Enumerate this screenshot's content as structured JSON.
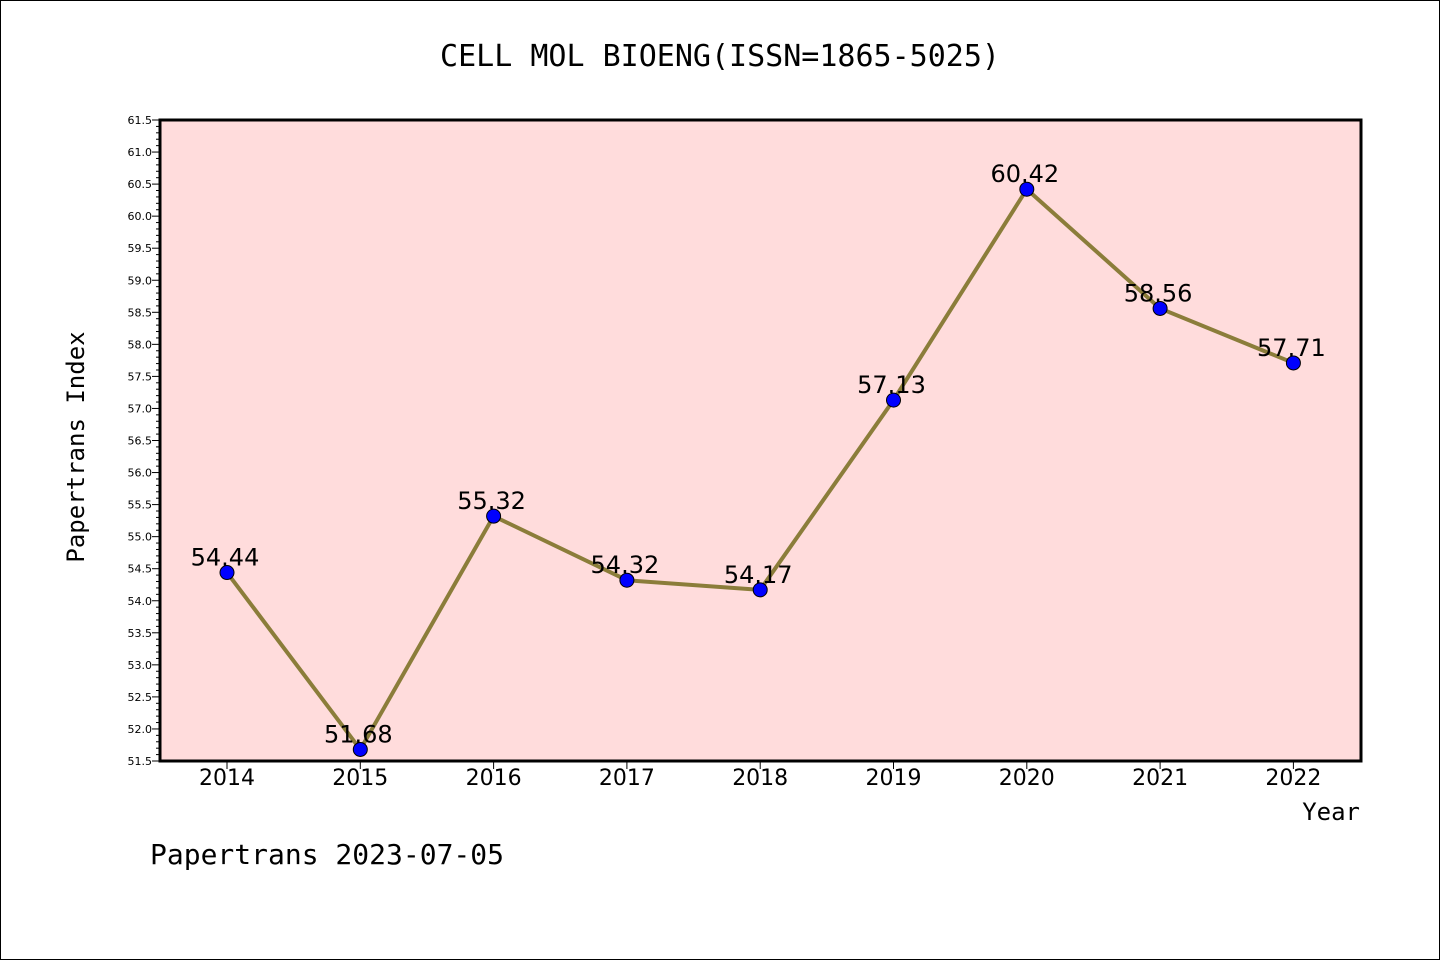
{
  "chart_data": {
    "type": "line",
    "title": "CELL MOL BIOENG(ISSN=1865-5025)",
    "xlabel": "Year",
    "ylabel": "Papertrans Index",
    "categories": [
      "2014",
      "2015",
      "2016",
      "2017",
      "2018",
      "2019",
      "2020",
      "2021",
      "2022"
    ],
    "values": [
      54.44,
      51.68,
      55.32,
      54.32,
      54.17,
      57.13,
      60.42,
      58.56,
      57.71
    ],
    "data_labels": [
      "54.44",
      "51.68",
      "55.32",
      "54.32",
      "54.17",
      "57.13",
      "60.42",
      "58.56",
      "57.71"
    ],
    "ylim": [
      51.5,
      61.5
    ],
    "ytick_step": 0.5,
    "grid": false,
    "colors": {
      "line": "#8b7d3a",
      "marker": "#0000ff",
      "plot_bg": "#ffdcdc"
    }
  },
  "footer": "Papertrans 2023-07-05"
}
